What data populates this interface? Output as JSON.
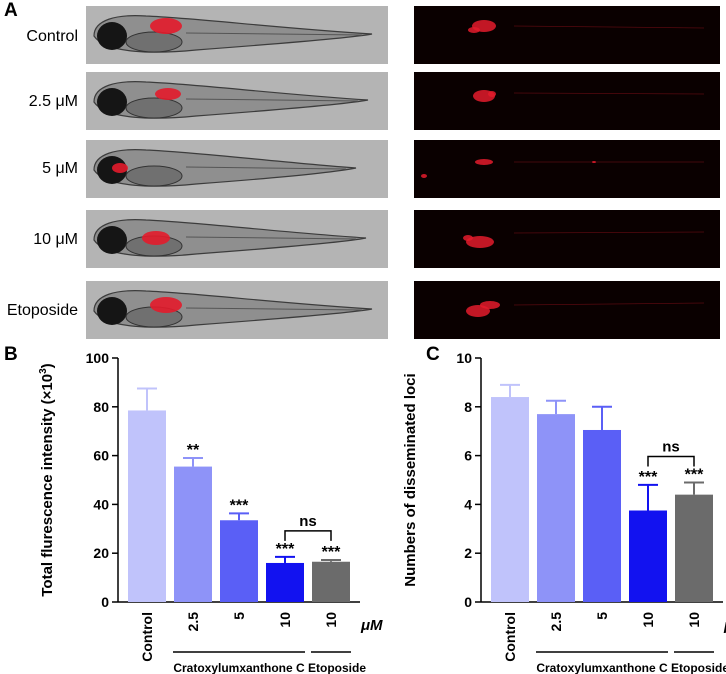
{
  "panels": {
    "a": "A",
    "b": "B",
    "c": "C"
  },
  "rows": [
    "Control",
    "2.5 μM",
    "5 μM",
    "10 μM",
    "Etoposide"
  ],
  "colors": {
    "bars": [
      "#c0c3fb",
      "#8e93f8",
      "#5a5ff6",
      "#1212f0",
      "#6b6b6b"
    ],
    "brightfield_bg": "#b4b4b4",
    "fluorescence_bg": "#0a0000",
    "signal": "#e31b2b"
  },
  "chart_data": [
    {
      "type": "bar",
      "panel": "B",
      "categories": [
        "Control",
        "2.5",
        "5",
        "10",
        "10"
      ],
      "values": [
        78.5,
        55.5,
        33.5,
        16.0,
        16.5
      ],
      "errors": [
        9.0,
        3.5,
        2.8,
        2.5,
        0.7
      ],
      "significance": [
        "",
        "**",
        "***",
        "***",
        "***"
      ],
      "comparison_label": "ns",
      "ylabel": "Total flurescence intensity (×10",
      "ylabel_sup": "3",
      "ylabel_end": ")",
      "yticks": [
        "0",
        "20",
        "40",
        "60",
        "80",
        "100"
      ],
      "ylim": [
        0,
        100
      ],
      "unit": "μM",
      "group_labels": [
        "Cratoxylumxanthone C",
        "Etoposide"
      ]
    },
    {
      "type": "bar",
      "panel": "C",
      "categories": [
        "Control",
        "2.5",
        "5",
        "10",
        "10"
      ],
      "values": [
        8.4,
        7.7,
        7.05,
        3.75,
        4.4
      ],
      "errors": [
        0.5,
        0.55,
        0.95,
        1.05,
        0.5
      ],
      "significance": [
        "",
        "",
        "",
        "***",
        "***"
      ],
      "comparison_label": "ns",
      "ylabel": "Numbers of disseminated loci",
      "yticks": [
        "0",
        "2",
        "4",
        "6",
        "8",
        "10"
      ],
      "ylim": [
        0,
        10
      ],
      "unit": "μM",
      "group_labels": [
        "Cratoxylumxanthone C",
        "Etoposide"
      ]
    }
  ]
}
